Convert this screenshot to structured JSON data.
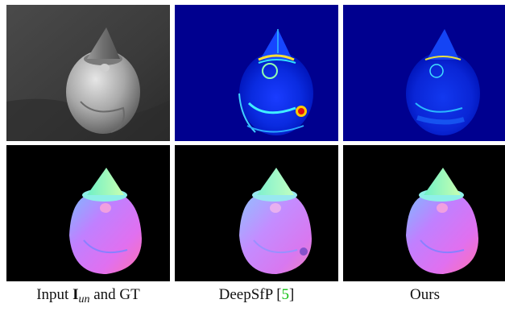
{
  "captions": {
    "col1_prefix": "Input ",
    "col1_symbol": "I",
    "col1_subscript": "un",
    "col1_suffix": " and GT",
    "col2_text": "DeepSfP [",
    "col2_ref": "5",
    "col2_close": "]",
    "col3_text": "Ours"
  },
  "colors": {
    "error_background": "#00008f",
    "normal_background": "#000000",
    "citation": "#12c012"
  },
  "figure": {
    "rows": [
      "angular error map",
      "surface normal map"
    ],
    "subject": "gnome figurine"
  }
}
